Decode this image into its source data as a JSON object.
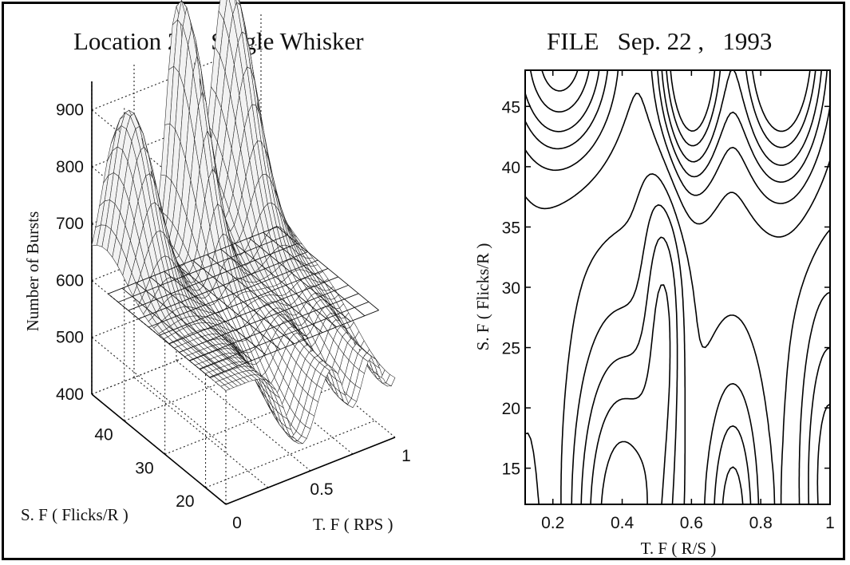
{
  "chart_data": [
    {
      "type": "surface",
      "title": "Location 2 ,   Single Whisker",
      "xlabel": "T. F ( RPS )",
      "ylabel": "S. F ( Flicks/R )",
      "zlabel": "Number of Bursts",
      "x_ticks": [
        "0",
        "0.5",
        "1"
      ],
      "y_ticks": [
        "20",
        "30",
        "40"
      ],
      "z_ticks": [
        "400",
        "500",
        "600",
        "700",
        "800",
        "900"
      ],
      "xlim": [
        0,
        1
      ],
      "ylim": [
        15,
        48
      ],
      "zlim": [
        400,
        950
      ],
      "grid": true,
      "plane_level": 600,
      "peaks": [
        {
          "x": 0.15,
          "y": 45,
          "z": 740
        },
        {
          "x": 0.5,
          "y": 46,
          "z": 870
        },
        {
          "x": 0.78,
          "y": 47,
          "z": 910
        }
      ],
      "troughs": [
        {
          "x": 0.45,
          "y": 20,
          "z": 470
        },
        {
          "x": 0.75,
          "y": 20,
          "z": 480
        },
        {
          "x": 0.95,
          "y": 20,
          "z": 500
        }
      ]
    },
    {
      "type": "contour",
      "title": "FILE   Sep. 22 ,   1993",
      "xlabel": "T. F ( R/S )",
      "ylabel": "S. F ( Flicks/R )",
      "x_ticks": [
        "0.2",
        "0.4",
        "0.6",
        "0.8",
        "1"
      ],
      "y_ticks": [
        "15",
        "20",
        "25",
        "30",
        "35",
        "40",
        "45"
      ],
      "xlim": [
        0.12,
        1
      ],
      "ylim": [
        12,
        48
      ],
      "grid": false
    }
  ]
}
